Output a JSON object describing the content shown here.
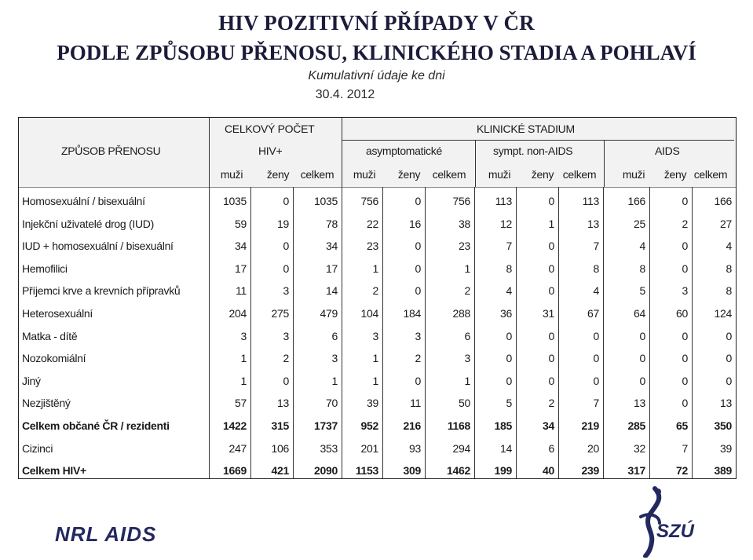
{
  "title_line1": "HIV POZITIVNÍ PŘÍPADY V ČR",
  "title_line2": "PODLE ZPŮSOBU PŘENOSU, KLINICKÉHO STADIA A POHLAVÍ",
  "subtitle": "Kumulativní údaje ke dni",
  "date": "30.4.  2012",
  "header": {
    "col_label": "ZPŮSOB PŘENOSU",
    "total_group": "CELKOVÝ POČET",
    "total_sub": "HIV+",
    "clinical_group": "KLINICKÉ STADIUM",
    "asym": "asymptomatické",
    "sympt": "sympt. non-AIDS",
    "aids": "AIDS",
    "sub": [
      "muži",
      "ženy",
      "celkem",
      "muži",
      "ženy",
      "celkem",
      "muži",
      "ženy",
      "celkem",
      "muži",
      "ženy",
      "celkem"
    ]
  },
  "rows": [
    {
      "label": "Homosexuální / bisexuální",
      "values": [
        "1035",
        "0",
        "1035",
        "756",
        "0",
        "756",
        "113",
        "0",
        "113",
        "166",
        "0",
        "166"
      ],
      "bold": false
    },
    {
      "label": "Injekční uživatelé drog  (IUD)",
      "values": [
        "59",
        "19",
        "78",
        "22",
        "16",
        "38",
        "12",
        "1",
        "13",
        "25",
        "2",
        "27"
      ],
      "bold": false
    },
    {
      "label": "IUD + homosexuální / bisexuální",
      "values": [
        "34",
        "0",
        "34",
        "23",
        "0",
        "23",
        "7",
        "0",
        "7",
        "4",
        "0",
        "4"
      ],
      "bold": false
    },
    {
      "label": "Hemofilici",
      "values": [
        "17",
        "0",
        "17",
        "1",
        "0",
        "1",
        "8",
        "0",
        "8",
        "8",
        "0",
        "8"
      ],
      "bold": false
    },
    {
      "label": "Příjemci krve a krevních přípravků",
      "values": [
        "11",
        "3",
        "14",
        "2",
        "0",
        "2",
        "4",
        "0",
        "4",
        "5",
        "3",
        "8"
      ],
      "bold": false
    },
    {
      "label": "Heterosexuální",
      "values": [
        "204",
        "275",
        "479",
        "104",
        "184",
        "288",
        "36",
        "31",
        "67",
        "64",
        "60",
        "124"
      ],
      "bold": false
    },
    {
      "label": "Matka - dítě",
      "values": [
        "3",
        "3",
        "6",
        "3",
        "3",
        "6",
        "0",
        "0",
        "0",
        "0",
        "0",
        "0"
      ],
      "bold": false
    },
    {
      "label": "Nozokomiální",
      "values": [
        "1",
        "2",
        "3",
        "1",
        "2",
        "3",
        "0",
        "0",
        "0",
        "0",
        "0",
        "0"
      ],
      "bold": false
    },
    {
      "label": "Jiný",
      "values": [
        "1",
        "0",
        "1",
        "1",
        "0",
        "1",
        "0",
        "0",
        "0",
        "0",
        "0",
        "0"
      ],
      "bold": false
    },
    {
      "label": "Nezjištěný",
      "values": [
        "57",
        "13",
        "70",
        "39",
        "11",
        "50",
        "5",
        "2",
        "7",
        "13",
        "0",
        "13"
      ],
      "bold": false
    },
    {
      "label": "Celkem občané ČR / rezidenti",
      "values": [
        "1422",
        "315",
        "1737",
        "952",
        "216",
        "1168",
        "185",
        "34",
        "219",
        "285",
        "65",
        "350"
      ],
      "bold": true
    },
    {
      "label": "Cizinci",
      "values": [
        "247",
        "106",
        "353",
        "201",
        "93",
        "294",
        "14",
        "6",
        "20",
        "32",
        "7",
        "39"
      ],
      "bold": false
    },
    {
      "label": "Celkem HIV+",
      "values": [
        "1669",
        "421",
        "2090",
        "1153",
        "309",
        "1462",
        "199",
        "40",
        "239",
        "317",
        "72",
        "389"
      ],
      "bold": true
    }
  ],
  "logo_left": "NRL AIDS",
  "logo_right": "SZÚ",
  "colors": {
    "brand": "#23295f",
    "header_bg": "#f2f2f2"
  }
}
